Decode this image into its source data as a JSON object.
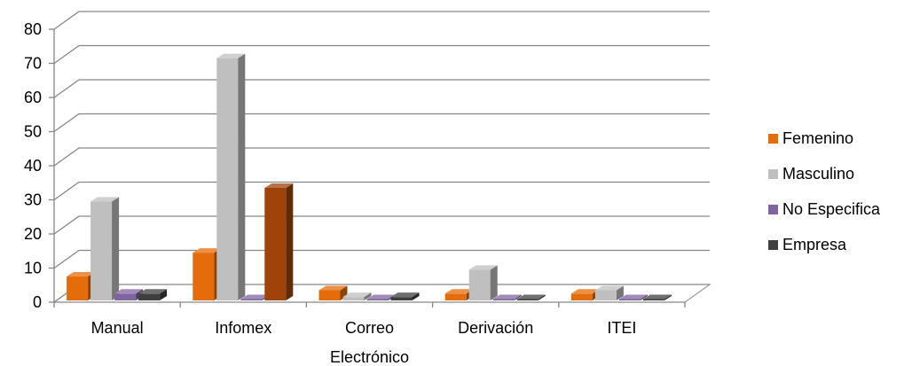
{
  "chart_data": {
    "type": "bar",
    "categories": [
      [
        "Manual"
      ],
      [
        "Infomex"
      ],
      [
        "Correo",
        "Electrónico"
      ],
      [
        "Derivación"
      ],
      [
        "ITEI"
      ]
    ],
    "series": [
      {
        "name": "Femenino",
        "values": [
          7,
          14,
          3,
          2,
          2
        ],
        "color": "#E46C0A"
      },
      {
        "name": "Masculino",
        "values": [
          29,
          71,
          1,
          9,
          3
        ],
        "color": "#BFBFBF"
      },
      {
        "name": "No Especifica",
        "values": [
          2,
          0,
          0,
          0,
          0
        ],
        "color": "#8064A2"
      },
      {
        "name": "Empresa",
        "values": [
          2,
          0,
          1,
          0,
          0
        ],
        "color": "#3F3F3F"
      }
    ],
    "overrides": [
      {
        "series": 3,
        "category": 1,
        "value": 33,
        "color": "#A0430A"
      }
    ],
    "ylim": [
      0,
      80
    ],
    "yticks": [
      0,
      10,
      20,
      30,
      40,
      50,
      60,
      70,
      80
    ],
    "grid": true,
    "legend_position": "right",
    "style": "3d-clustered-column"
  }
}
